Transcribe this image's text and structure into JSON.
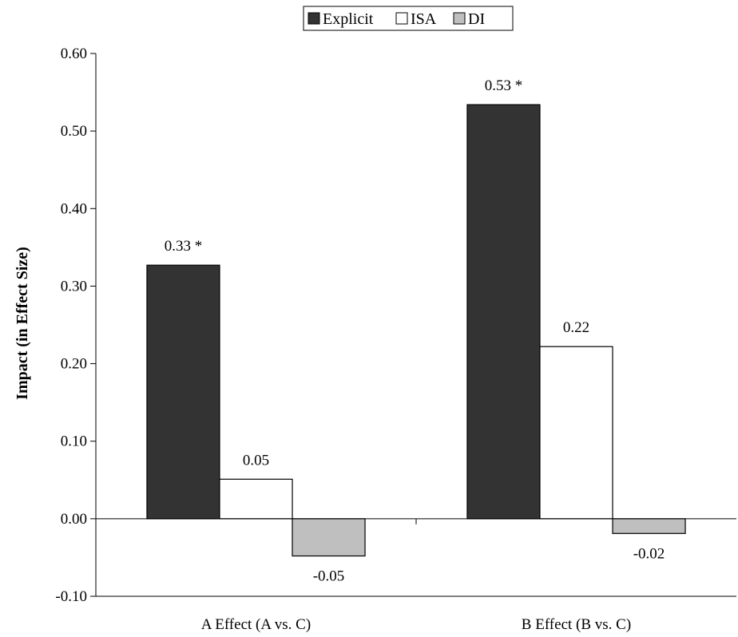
{
  "chart_data": {
    "type": "bar",
    "categories": [
      "A Effect (A vs. C)",
      "B Effect (B vs. C)"
    ],
    "series": [
      {
        "name": "Explicit",
        "values": [
          0.327,
          0.534
        ],
        "labels": [
          "0.33 *",
          "0.53 *"
        ],
        "color": "#333333"
      },
      {
        "name": "ISA",
        "values": [
          0.051,
          0.222
        ],
        "labels": [
          "0.05",
          "0.22"
        ],
        "color": "#ffffff"
      },
      {
        "name": "DI",
        "values": [
          -0.048,
          -0.019
        ],
        "labels": [
          "-0.05",
          "-0.02"
        ],
        "color": "#bfbfbf"
      }
    ],
    "ylabel": "Impact (in Effect Size)",
    "xlabel": "",
    "ylim": [
      -0.1,
      0.6
    ],
    "yticks": [
      0.6,
      0.5,
      0.4,
      0.3,
      0.2,
      0.1,
      0.0,
      -0.1
    ],
    "ytick_labels": [
      "0.60",
      "0.50",
      "0.40",
      "0.30",
      "0.20",
      "0.10",
      "0.00",
      "-0.10"
    ],
    "grid": false,
    "legend_position": "top-center"
  }
}
